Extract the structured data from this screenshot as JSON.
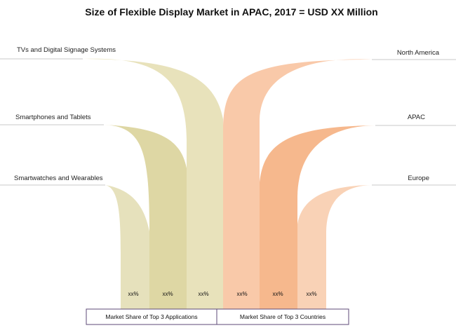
{
  "chart_data": {
    "type": "flow",
    "title": "Size of Flexible Display Market in APAC, 2017 = USD XX Million",
    "applications": {
      "legend": "Market Share of Top 3 Applications",
      "items": [
        {
          "name": "TVs  and Digital Signage Systems",
          "value_label": "xx%",
          "color": "#e8e2bb"
        },
        {
          "name": "Smartphones and Tablets",
          "value_label": "xx%",
          "color": "#ded7a4"
        },
        {
          "name": "Smartwatches and Wearables",
          "value_label": "xx%",
          "color": "#e6e1bc"
        }
      ]
    },
    "countries": {
      "legend": "Market Share of Top 3 Countries",
      "items": [
        {
          "name": "North America",
          "value_label": "xx%",
          "color": "#f9c9a9"
        },
        {
          "name": "APAC",
          "value_label": "xx%",
          "color": "#f6b88d"
        },
        {
          "name": "Europe",
          "value_label": "xx%",
          "color": "#f9d2b6"
        }
      ]
    }
  }
}
